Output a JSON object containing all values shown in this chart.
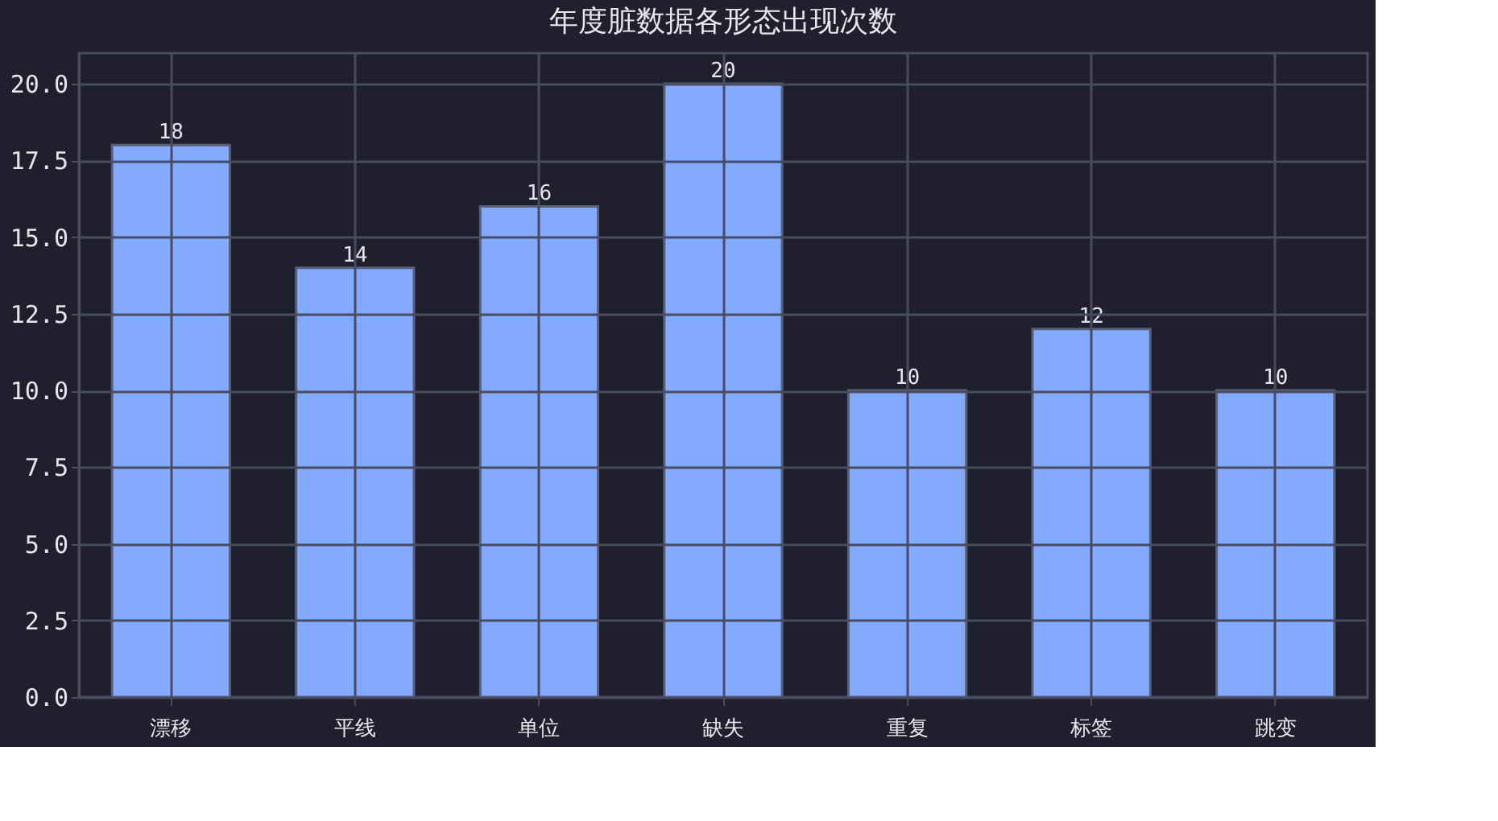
{
  "chart_data": {
    "type": "bar",
    "title": "年度脏数据各形态出现次数",
    "categories": [
      "漂移",
      "平线",
      "单位",
      "缺失",
      "重复",
      "标签",
      "跳变"
    ],
    "values": [
      18,
      14,
      16,
      20,
      10,
      12,
      10
    ],
    "color": "#82aaff",
    "ylim": [
      0,
      21
    ],
    "yticks": [
      {
        "value": 0,
        "label": "0.0"
      },
      {
        "value": 2.5,
        "label": "2.5"
      },
      {
        "value": 5,
        "label": "5.0"
      },
      {
        "value": 7.5,
        "label": "7.5"
      },
      {
        "value": 10,
        "label": "10.0"
      },
      {
        "value": 12.5,
        "label": "12.5"
      },
      {
        "value": 15,
        "label": "15.0"
      },
      {
        "value": 17.5,
        "label": "17.5"
      },
      {
        "value": 20,
        "label": "20.0"
      }
    ],
    "grid": true,
    "data_labels": true
  }
}
